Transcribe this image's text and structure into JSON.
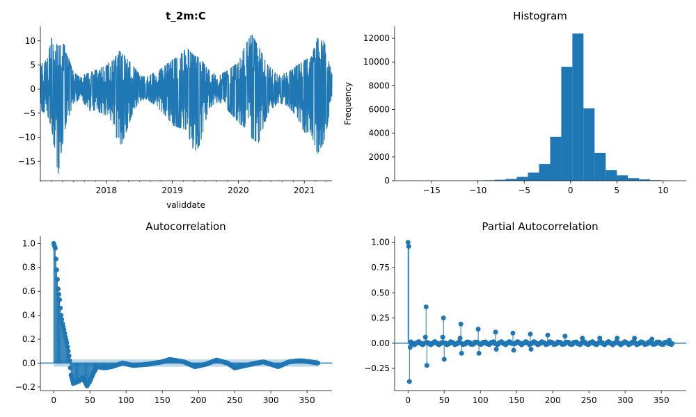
{
  "chart_data": [
    {
      "type": "line",
      "title": "t_2m:C",
      "xlabel": "validdate",
      "ylabel": "",
      "xlim": [
        2017.0,
        2021.42
      ],
      "ylim": [
        -19.0,
        13.0
      ],
      "x_ticks": [
        {
          "v": 2018.0,
          "label": "2018"
        },
        {
          "v": 2019.0,
          "label": "2019"
        },
        {
          "v": 2020.0,
          "label": "2020"
        },
        {
          "v": 2021.0,
          "label": "2021"
        }
      ],
      "y_ticks": [
        {
          "v": 10,
          "label": "10"
        },
        {
          "v": 5,
          "label": "5"
        },
        {
          "v": 0,
          "label": "0"
        },
        {
          "v": -5,
          "label": "−5"
        },
        {
          "v": -10,
          "label": "−10"
        },
        {
          "v": -15,
          "label": "−15"
        }
      ],
      "color": "#1f77b4",
      "envelope": [
        [
          2017.0,
          5.5,
          -4.5
        ],
        [
          2017.1,
          6.0,
          -5.0
        ],
        [
          2017.17,
          10.5,
          -8.0
        ],
        [
          2017.27,
          9.0,
          -17.8
        ],
        [
          2017.36,
          9.3,
          -9.0
        ],
        [
          2017.5,
          3.5,
          -3.0
        ],
        [
          2017.6,
          2.5,
          -2.0
        ],
        [
          2017.75,
          3.5,
          -4.5
        ],
        [
          2017.85,
          4.0,
          -4.5
        ],
        [
          2018.0,
          5.0,
          -5.5
        ],
        [
          2018.1,
          6.0,
          -7.0
        ],
        [
          2018.2,
          8.0,
          -12.5
        ],
        [
          2018.3,
          6.5,
          -9.0
        ],
        [
          2018.4,
          5.0,
          -5.0
        ],
        [
          2018.5,
          3.0,
          -2.5
        ],
        [
          2018.6,
          2.5,
          -2.0
        ],
        [
          2018.75,
          3.5,
          -3.5
        ],
        [
          2018.9,
          5.0,
          -5.5
        ],
        [
          2019.0,
          6.0,
          -7.5
        ],
        [
          2019.1,
          7.0,
          -8.0
        ],
        [
          2019.22,
          8.5,
          -8.5
        ],
        [
          2019.33,
          7.0,
          -13.2
        ],
        [
          2019.42,
          6.5,
          -11.5
        ],
        [
          2019.55,
          4.0,
          -4.0
        ],
        [
          2019.7,
          2.8,
          -2.5
        ],
        [
          2019.85,
          4.0,
          -4.5
        ],
        [
          2020.0,
          5.5,
          -7.0
        ],
        [
          2020.1,
          9.0,
          -8.0
        ],
        [
          2020.2,
          11.5,
          -10.0
        ],
        [
          2020.3,
          9.0,
          -11.5
        ],
        [
          2020.45,
          5.0,
          -5.0
        ],
        [
          2020.6,
          3.0,
          -2.8
        ],
        [
          2020.75,
          3.5,
          -3.5
        ],
        [
          2020.9,
          5.0,
          -6.0
        ],
        [
          2021.0,
          6.0,
          -9.0
        ],
        [
          2021.1,
          6.5,
          -9.0
        ],
        [
          2021.2,
          10.5,
          -13.5
        ],
        [
          2021.3,
          10.0,
          -11.0
        ],
        [
          2021.42,
          3.0,
          -2.5
        ]
      ]
    },
    {
      "type": "bar",
      "title": "Histogram",
      "xlabel": "",
      "ylabel": "Frequency",
      "xlim": [
        -19.0,
        12.5
      ],
      "ylim": [
        0,
        13000
      ],
      "x_ticks": [
        {
          "v": -15,
          "label": "−15"
        },
        {
          "v": -10,
          "label": "−10"
        },
        {
          "v": -5,
          "label": "−5"
        },
        {
          "v": 0,
          "label": "0"
        },
        {
          "v": 5,
          "label": "5"
        },
        {
          "v": 10,
          "label": "10"
        }
      ],
      "y_ticks": [
        {
          "v": 0,
          "label": "0"
        },
        {
          "v": 2000,
          "label": "2000"
        },
        {
          "v": 4000,
          "label": "4000"
        },
        {
          "v": 6000,
          "label": "6000"
        },
        {
          "v": 8000,
          "label": "8000"
        },
        {
          "v": 10000,
          "label": "10000"
        },
        {
          "v": 12000,
          "label": "12000"
        }
      ],
      "color": "#1f77b4",
      "bin_edges": [
        -17.8,
        -16.6,
        -15.4,
        -14.2,
        -13.0,
        -11.8,
        -10.6,
        -9.4,
        -8.2,
        -7.0,
        -5.8,
        -4.6,
        -3.4,
        -2.2,
        -1.0,
        0.2,
        1.4,
        2.6,
        3.8,
        5.0,
        6.2,
        7.4,
        8.6,
        9.8,
        11.0
      ],
      "values": [
        2,
        1,
        2,
        3,
        6,
        10,
        20,
        40,
        80,
        150,
        320,
        680,
        1400,
        3700,
        9600,
        12400,
        6100,
        2350,
        880,
        450,
        220,
        110,
        45,
        12
      ]
    },
    {
      "type": "stem",
      "title": "Autocorrelation",
      "xlabel": "",
      "ylabel": "",
      "xlim": [
        -18.5,
        384.5
      ],
      "ylim": [
        -0.23,
        1.06
      ],
      "x_ticks": [
        {
          "v": 0,
          "label": "0"
        },
        {
          "v": 50,
          "label": "50"
        },
        {
          "v": 100,
          "label": "100"
        },
        {
          "v": 150,
          "label": "150"
        },
        {
          "v": 200,
          "label": "200"
        },
        {
          "v": 250,
          "label": "250"
        },
        {
          "v": 300,
          "label": "300"
        },
        {
          "v": 350,
          "label": "350"
        }
      ],
      "y_ticks": [
        {
          "v": -0.2,
          "label": "−0.2"
        },
        {
          "v": 0.0,
          "label": "0.0"
        },
        {
          "v": 0.2,
          "label": "0.2"
        },
        {
          "v": 0.4,
          "label": "0.4"
        },
        {
          "v": 0.6,
          "label": "0.6"
        },
        {
          "v": 0.8,
          "label": "0.8"
        },
        {
          "v": 1.0,
          "label": "1.0"
        }
      ],
      "color": "#1f77b4",
      "confint_color": "#1f77b4",
      "confint_band": 0.03,
      "lags": [
        0,
        365
      ],
      "profile": [
        [
          0,
          1.0
        ],
        [
          2,
          0.96
        ],
        [
          3,
          0.87
        ],
        [
          4,
          0.78
        ],
        [
          5,
          0.7
        ],
        [
          6,
          0.62
        ],
        [
          8,
          0.53
        ],
        [
          9,
          0.46
        ],
        [
          10,
          0.4
        ],
        [
          12,
          0.33
        ],
        [
          14,
          0.28
        ],
        [
          16,
          0.22
        ],
        [
          18,
          0.17
        ],
        [
          20,
          0.1
        ],
        [
          22,
          0.02
        ],
        [
          24,
          -0.1
        ],
        [
          27,
          -0.17
        ],
        [
          35,
          -0.15
        ],
        [
          40,
          -0.12
        ],
        [
          46,
          -0.19
        ],
        [
          50,
          -0.15
        ],
        [
          55,
          -0.08
        ],
        [
          60,
          -0.03
        ],
        [
          70,
          -0.04
        ],
        [
          80,
          -0.03
        ],
        [
          95,
          0.0
        ],
        [
          110,
          -0.02
        ],
        [
          130,
          -0.01
        ],
        [
          150,
          0.01
        ],
        [
          160,
          0.03
        ],
        [
          170,
          0.02
        ],
        [
          180,
          0.01
        ],
        [
          195,
          -0.03
        ],
        [
          210,
          -0.01
        ],
        [
          225,
          0.025
        ],
        [
          240,
          0.0
        ],
        [
          250,
          -0.04
        ],
        [
          265,
          -0.02
        ],
        [
          280,
          0.0
        ],
        [
          290,
          0.01
        ],
        [
          300,
          -0.01
        ],
        [
          310,
          -0.03
        ],
        [
          325,
          0.01
        ],
        [
          340,
          0.02
        ],
        [
          355,
          0.01
        ],
        [
          365,
          0.0
        ]
      ]
    },
    {
      "type": "stem",
      "title": "Partial Autocorrelation",
      "xlabel": "",
      "ylabel": "",
      "xlim": [
        -18.5,
        384.5
      ],
      "ylim": [
        -0.47,
        1.06
      ],
      "x_ticks": [
        {
          "v": 0,
          "label": "0"
        },
        {
          "v": 50,
          "label": "50"
        },
        {
          "v": 100,
          "label": "100"
        },
        {
          "v": 150,
          "label": "150"
        },
        {
          "v": 200,
          "label": "200"
        },
        {
          "v": 250,
          "label": "250"
        },
        {
          "v": 300,
          "label": "300"
        },
        {
          "v": 350,
          "label": "350"
        }
      ],
      "y_ticks": [
        {
          "v": -0.25,
          "label": "−0.25"
        },
        {
          "v": 0.0,
          "label": "0.00"
        },
        {
          "v": 0.25,
          "label": "0.25"
        },
        {
          "v": 0.5,
          "label": "0.50"
        },
        {
          "v": 0.75,
          "label": "0.75"
        },
        {
          "v": 1.0,
          "label": "1.00"
        }
      ],
      "color": "#1f77b4",
      "confint_color": "#1f77b4",
      "confint_band": 0.015,
      "lags": [
        0,
        365
      ],
      "spikes": [
        [
          0,
          1.0
        ],
        [
          1,
          0.96
        ],
        [
          2,
          -0.38
        ],
        [
          3,
          -0.04
        ],
        [
          25,
          0.36
        ],
        [
          26,
          -0.22
        ],
        [
          24,
          0.06
        ],
        [
          49,
          0.25
        ],
        [
          50,
          -0.16
        ],
        [
          48,
          0.06
        ],
        [
          73,
          0.19
        ],
        [
          74,
          -0.1
        ],
        [
          72,
          0.05
        ],
        [
          97,
          0.14
        ],
        [
          98,
          -0.1
        ],
        [
          121,
          0.11
        ],
        [
          122,
          -0.06
        ],
        [
          145,
          0.1
        ],
        [
          146,
          -0.07
        ],
        [
          169,
          0.09
        ],
        [
          170,
          -0.06
        ],
        [
          193,
          0.08
        ],
        [
          217,
          0.07
        ],
        [
          241,
          0.05
        ],
        [
          265,
          0.05
        ],
        [
          289,
          0.05
        ],
        [
          313,
          0.05
        ],
        [
          337,
          0.04
        ],
        [
          361,
          0.03
        ]
      ]
    }
  ]
}
